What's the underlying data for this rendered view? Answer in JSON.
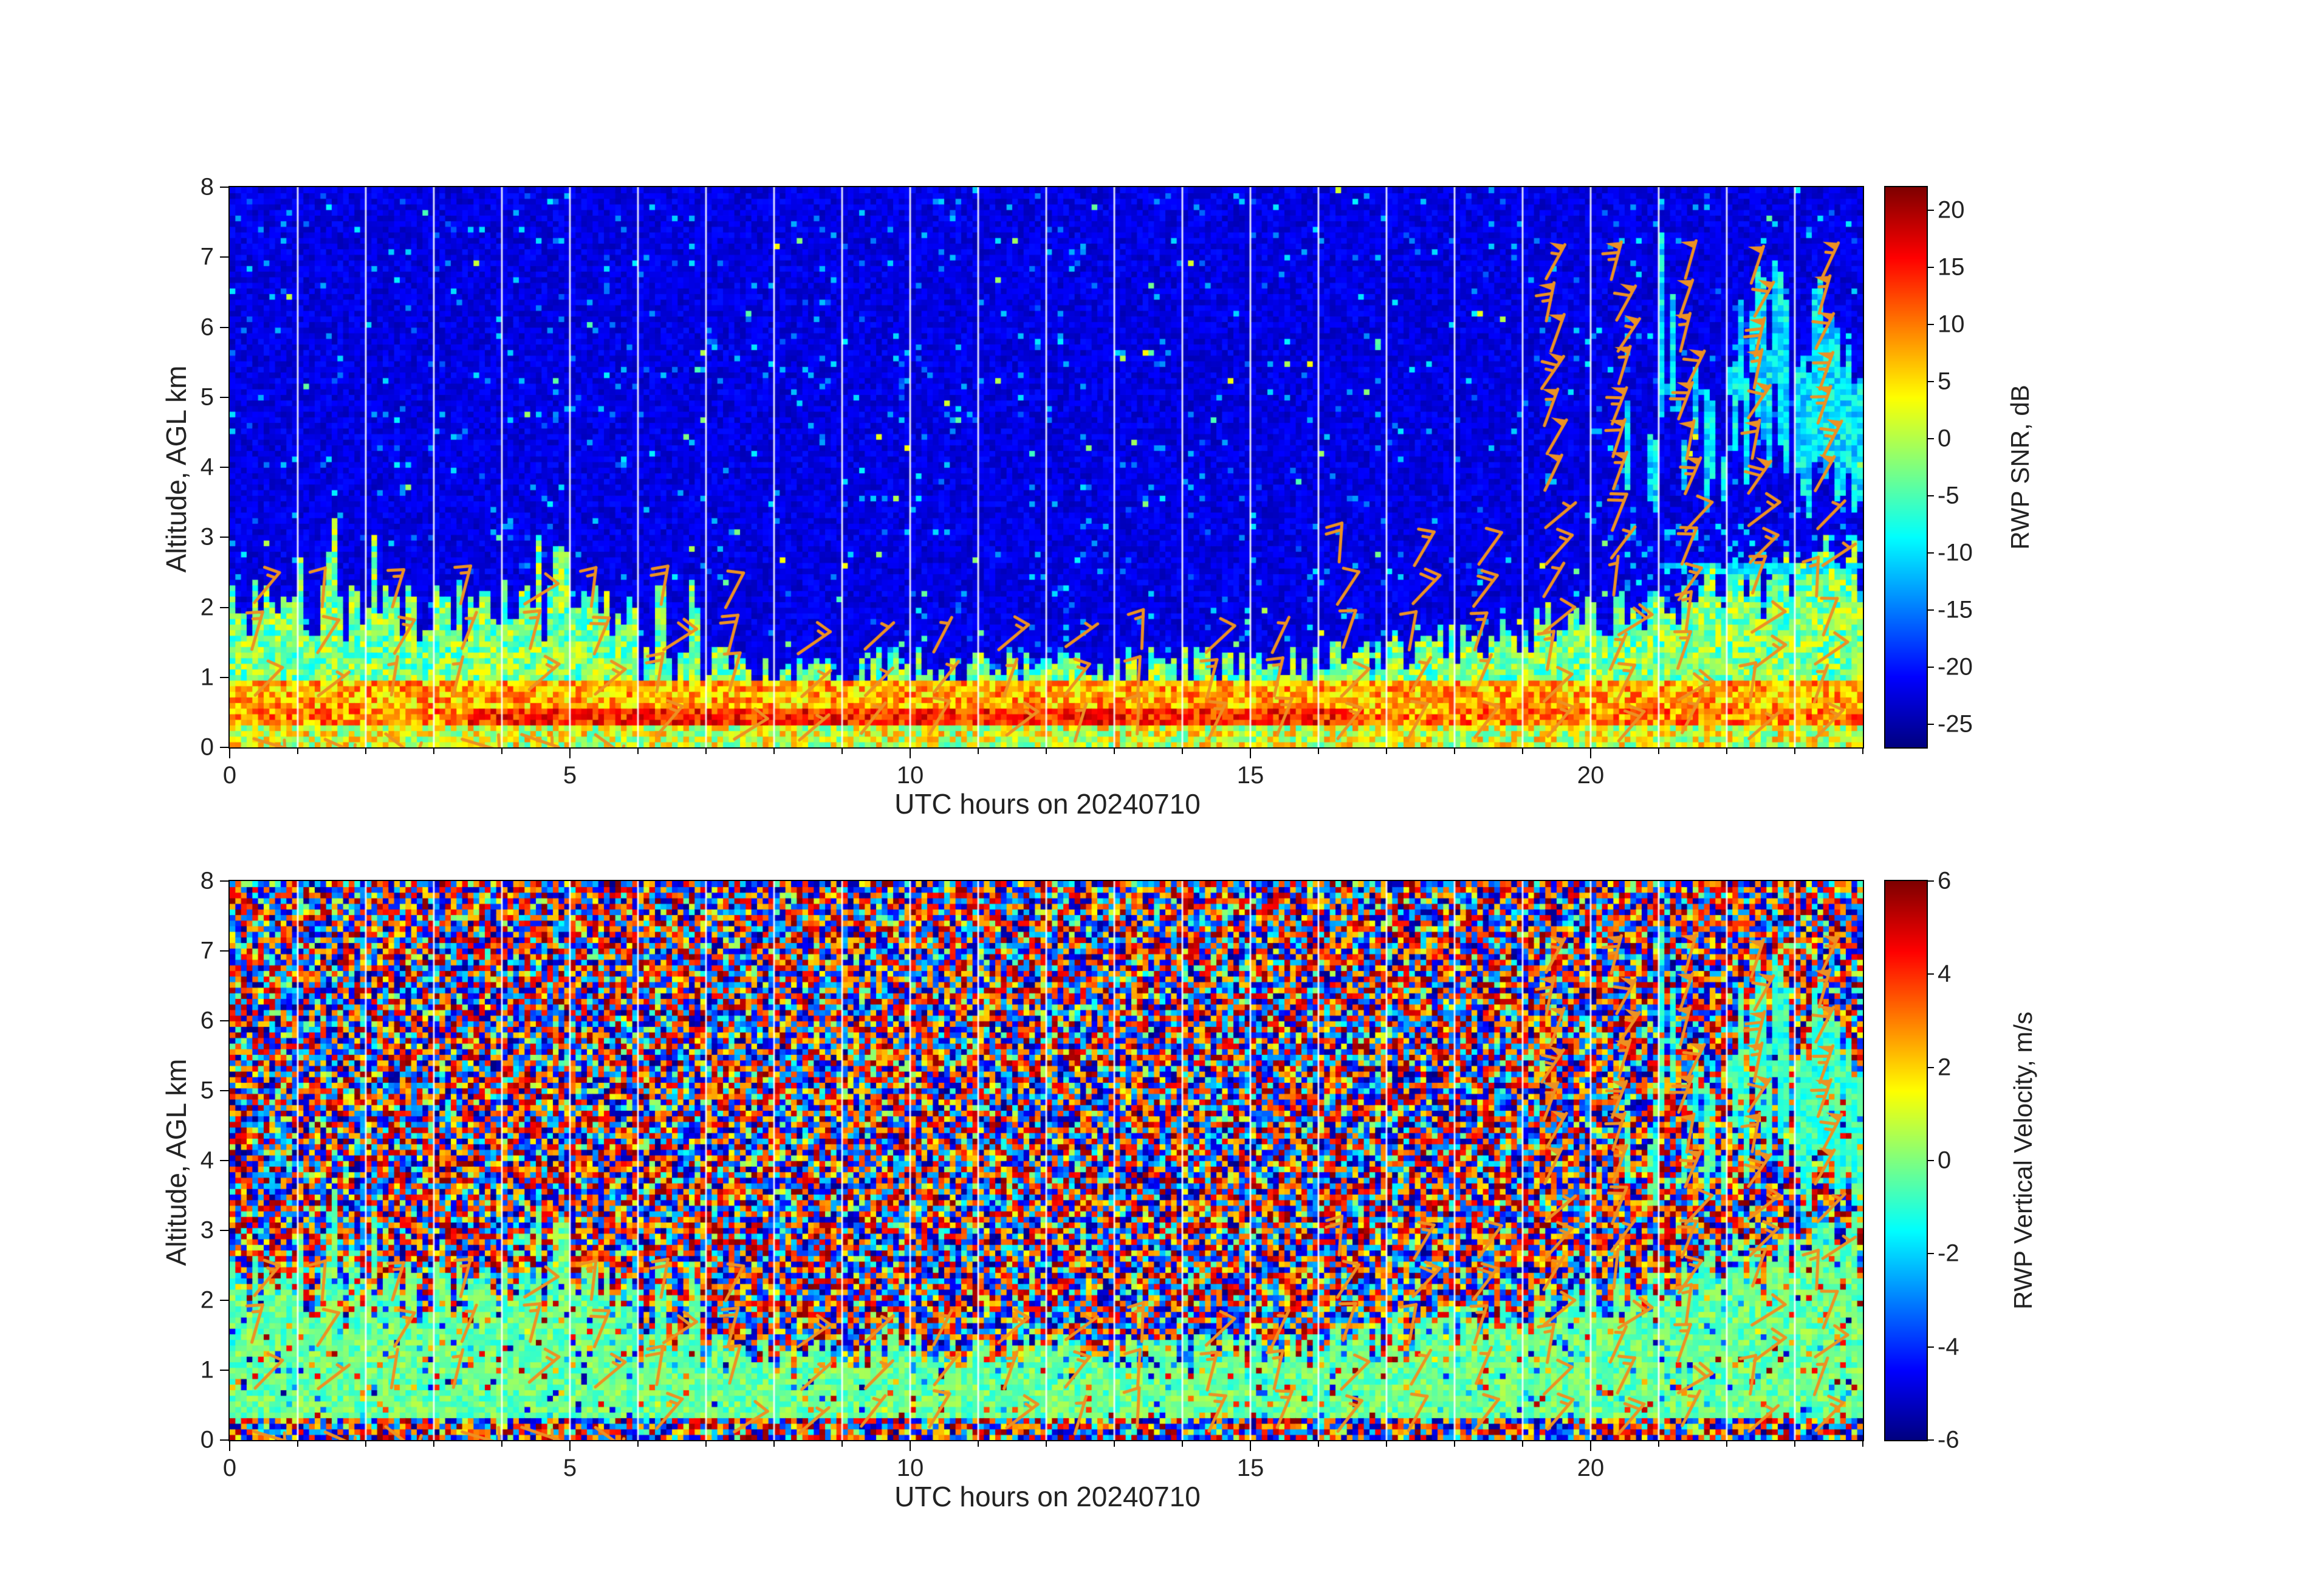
{
  "figure": {
    "background": "#ffffff",
    "date_utc": "20240710",
    "panel_order": [
      "snr",
      "vertical_velocity"
    ]
  },
  "chart_data": [
    {
      "id": "snr",
      "type": "heatmap",
      "title": "",
      "xlabel": "UTC hours on 20240710",
      "ylabel": "Altitude, AGL km",
      "xlim": [
        0,
        24
      ],
      "ylim": [
        0,
        8
      ],
      "x_ticks": [
        0,
        5,
        10,
        15,
        20
      ],
      "y_ticks": [
        0,
        1,
        2,
        3,
        4,
        5,
        6,
        7,
        8
      ],
      "colormap": "jet",
      "grid": "white vertical line at every UTC hour",
      "colorbar": {
        "label": "RWP SNR, dB",
        "ticks": [
          20,
          15,
          10,
          5,
          0,
          -5,
          -10,
          -15,
          -20,
          -25
        ],
        "vmin": -27,
        "vmax": 22
      },
      "overlay": {
        "type": "wind-barbs",
        "color": "#ec9123",
        "coverage": "hourly wind profiles below ~2.5 km all day, deep columns up to ~7 km after 19 UTC with 50+ kt pennants aloft"
      },
      "features": {
        "surface_band": {
          "z_km": [
            0.35,
            0.95
          ],
          "snr_db": [
            5,
            20
          ],
          "note": "strong yellow-red echo layer, most intense 4-16 UTC"
        },
        "boundary_layer_top_km": {
          "0-6_utc": 1.9,
          "6-16_utc": 1.15,
          "16-24_utc": "rises to ~2.5"
        },
        "background_snr_db": [
          -25,
          -20
        ],
        "cloud_layer": {
          "start_utc": 19.5,
          "z_km": [
            3.2,
            7.2
          ],
          "snr_db": [
            -14,
            -5
          ],
          "note": "cyan streaky echoes, densest 21-24 UTC"
        }
      }
    },
    {
      "id": "vertical_velocity",
      "type": "heatmap",
      "title": "",
      "xlabel": "UTC hours on 20240710",
      "ylabel": "Altitude, AGL km",
      "xlim": [
        0,
        24
      ],
      "ylim": [
        0,
        8
      ],
      "x_ticks": [
        0,
        5,
        10,
        15,
        20
      ],
      "y_ticks": [
        0,
        1,
        2,
        3,
        4,
        5,
        6,
        7,
        8
      ],
      "colormap": "jet",
      "grid": "white vertical line at every UTC hour",
      "colorbar": {
        "label": "RWP Vertical Velocity, m/s",
        "ticks": [
          6,
          4,
          2,
          0,
          -2,
          -4,
          -6
        ],
        "vmin": -6,
        "vmax": 6
      },
      "overlay": {
        "type": "wind-barbs",
        "color": "#ec9123",
        "coverage": "same barbs as SNR panel"
      },
      "features": {
        "noise_region": "random saturated red/blue speckle (+-2 to +-6 m/s) above boundary layer",
        "boundary_layer": {
          "velocity_ms": [
            -1.2,
            0.7
          ],
          "note": "coherent cyan-green band below ~1-2.5 km, rising after 16 UTC"
        },
        "cloud_layer": {
          "start_utc": 19.5,
          "z_km": [
            3.2,
            7.2
          ],
          "velocity_ms": [
            -1.8,
            0
          ],
          "note": "coherent cyan downdraft/updraft streaks 21-24 UTC"
        }
      }
    }
  ]
}
